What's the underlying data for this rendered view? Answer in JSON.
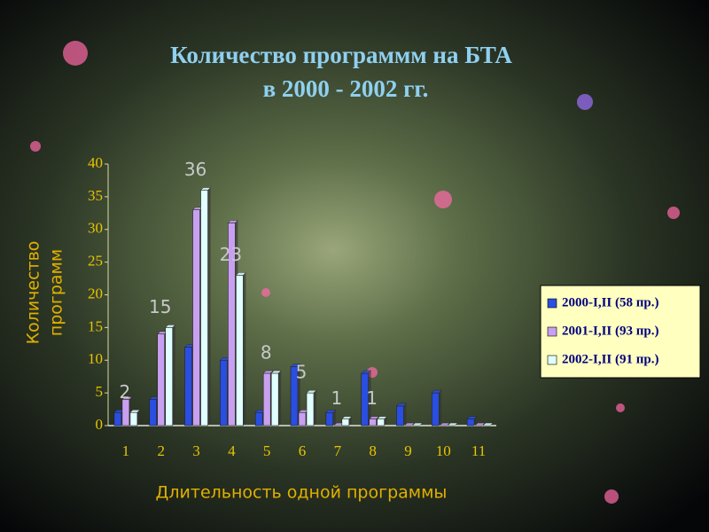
{
  "chart_data": {
    "type": "bar",
    "title": [
      "Количество программм  на  БТА",
      "в 2000 - 2002 гг."
    ],
    "xlabel": "Длительность одной программы",
    "ylabel": [
      "Количество",
      "программ"
    ],
    "categories": [
      "1",
      "2",
      "3",
      "4",
      "5",
      "6",
      "7",
      "8",
      "9",
      "10",
      "11"
    ],
    "series": [
      {
        "name": "2000-I,II (58 пр.)",
        "color": "#2a4ee0",
        "values": [
          2,
          4,
          12,
          10,
          2,
          9,
          2,
          8,
          3,
          5,
          1
        ]
      },
      {
        "name": "2001-I,II (93 пр.)",
        "color": "#c8a0f0",
        "values": [
          4,
          14,
          33,
          31,
          8,
          2,
          0,
          1,
          0,
          0,
          0
        ]
      },
      {
        "name": "2002-I,II (91 пр.)",
        "color": "#e0ffff",
        "values": [
          2,
          15,
          36,
          23,
          8,
          5,
          1,
          1,
          0,
          0,
          0
        ]
      }
    ],
    "ylim": [
      0,
      40
    ],
    "yticks": [
      0,
      5,
      10,
      15,
      20,
      25,
      30,
      35,
      40
    ],
    "data_labels_series": 2,
    "legend": "right"
  }
}
